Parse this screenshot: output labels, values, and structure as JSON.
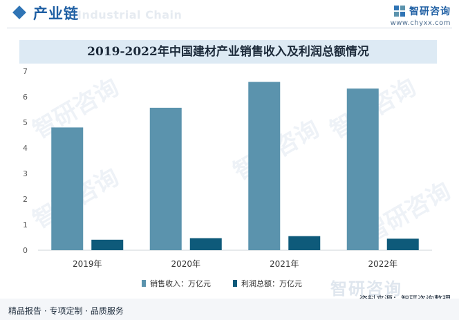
{
  "header": {
    "section_title": "产业链",
    "watermark_text": "Industrial Chain",
    "brand_name": "智研咨询",
    "brand_url": "www.chyxx.com"
  },
  "colors": {
    "accent": "#2f74b5",
    "series_revenue": "#5b93ad",
    "series_profit": "#0e5a7a",
    "title_bg": "#ddeaf4"
  },
  "chart_data": {
    "type": "bar",
    "title": "2019-2022年中国建材产业销售收入及利润总额情况",
    "categories": [
      "2019年",
      "2020年",
      "2021年",
      "2022年"
    ],
    "series": [
      {
        "name": "销售收入：万亿元",
        "values": [
          4.8,
          5.57,
          6.58,
          6.32
        ]
      },
      {
        "name": "利润总额：万亿元",
        "values": [
          0.41,
          0.47,
          0.55,
          0.45
        ]
      }
    ],
    "ylim": [
      0,
      7
    ],
    "yticks": [
      "0",
      "1",
      "2",
      "3",
      "4",
      "5",
      "6",
      "7"
    ],
    "grid": false,
    "legend_position": "bottom"
  },
  "footer": {
    "tagline": "精品报告 · 专项定制 · 品质服务",
    "source": "资料来源：智研咨询整理",
    "source_brand": "智研咨询"
  }
}
